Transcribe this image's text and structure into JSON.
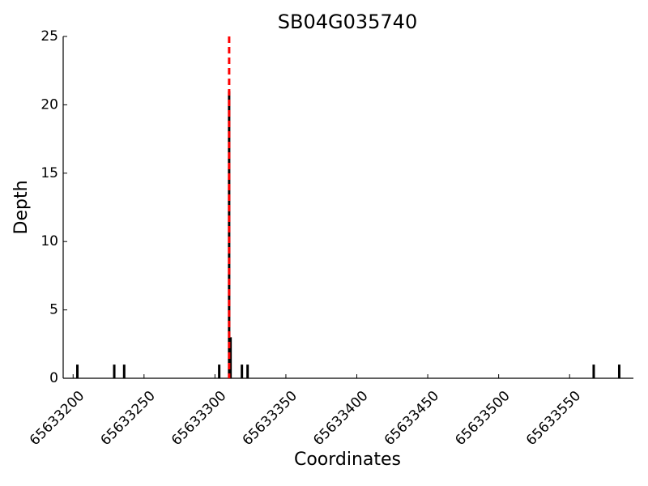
{
  "chart_data": {
    "type": "bar",
    "title": "SB04G035740",
    "x_label": "Coordinates",
    "y_label": "Depth",
    "x": [
      65633203,
      65633229,
      65633236,
      65633303,
      65633310,
      65633311,
      65633319,
      65633323,
      65633567,
      65633585
    ],
    "values": [
      1,
      1,
      1,
      1,
      21,
      3,
      1,
      1,
      1,
      1
    ],
    "color": "#000000",
    "reference_line": {
      "x": 65633310,
      "color": "#ff0000",
      "style": "dashed"
    },
    "xlim": [
      65633193,
      65633595
    ],
    "xticks": [
      65633200,
      65633250,
      65633300,
      65633350,
      65633400,
      65633450,
      65633500,
      65633550
    ],
    "ylim": [
      0,
      25
    ],
    "yticks": [
      0,
      5,
      10,
      15,
      20,
      25
    ],
    "grid": false
  }
}
